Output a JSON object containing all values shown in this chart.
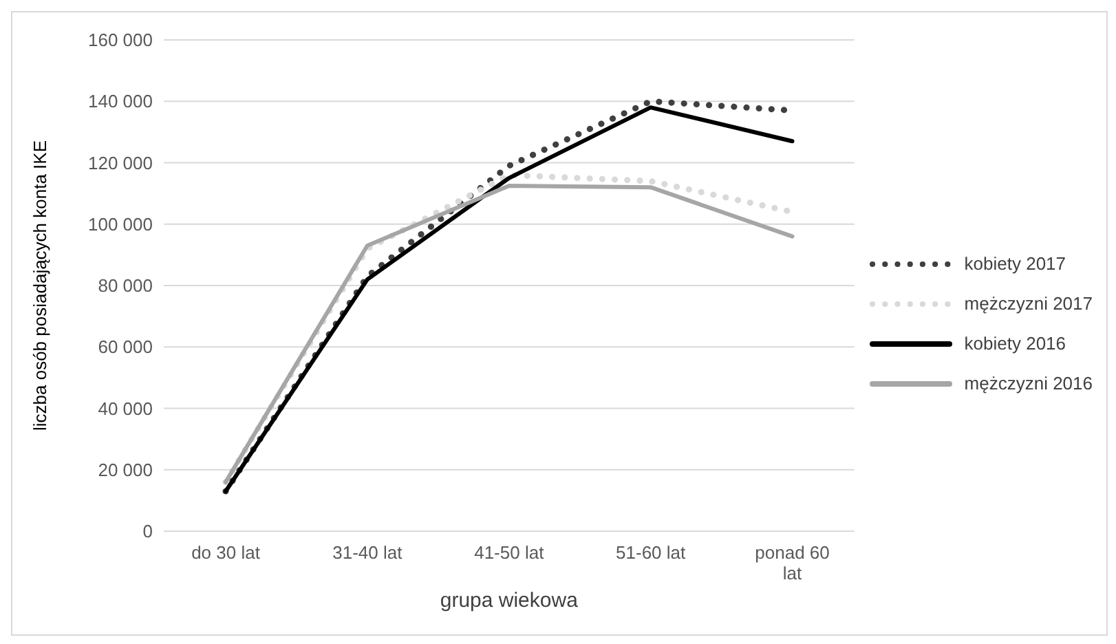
{
  "chart_data": {
    "type": "line",
    "xlabel": "grupa wiekowa",
    "ylabel": "liczba osób posiadających konta IKE",
    "categories": [
      "do 30 lat",
      "31-40 lat",
      "41-50 lat",
      "51-60 lat",
      "ponad 60 lat"
    ],
    "series": [
      {
        "name": "kobiety 2017",
        "color": "#404040",
        "line_style": "dotted",
        "values": [
          13000,
          83000,
          119000,
          140000,
          137000
        ]
      },
      {
        "name": "mężczyzni 2017",
        "color": "#d9d9d9",
        "line_style": "dotted",
        "values": [
          16000,
          92000,
          116000,
          114000,
          104000
        ]
      },
      {
        "name": "kobiety 2016",
        "color": "#000000",
        "line_style": "solid",
        "values": [
          13000,
          82000,
          115000,
          138000,
          127000
        ]
      },
      {
        "name": "mężczyzni 2016",
        "color": "#a6a6a6",
        "line_style": "solid",
        "values": [
          16000,
          93000,
          112500,
          112000,
          96000
        ]
      }
    ],
    "ylim": [
      0,
      160000
    ],
    "yticks": [
      0,
      20000,
      40000,
      60000,
      80000,
      100000,
      120000,
      140000,
      160000
    ],
    "grid": "y",
    "legend": "right",
    "marker": "none"
  }
}
